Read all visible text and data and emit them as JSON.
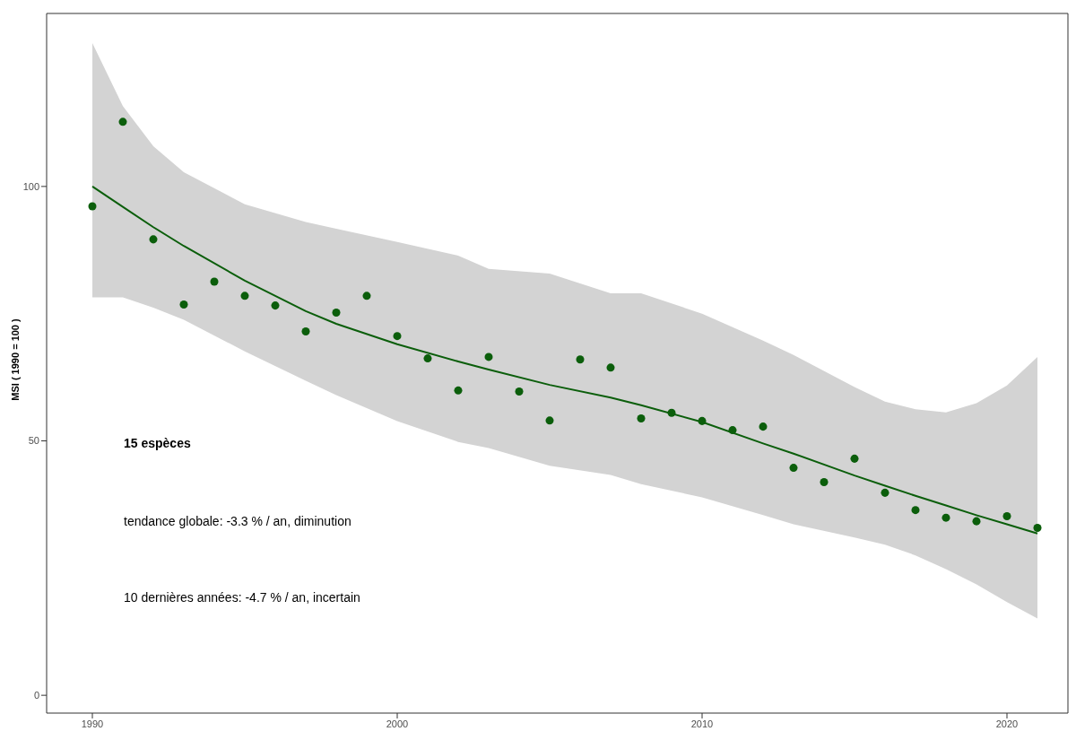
{
  "chart_data": {
    "type": "scatter",
    "ylabel": "MSI ( 1990 = 100 )",
    "x": [
      1990,
      1991,
      1992,
      1993,
      1994,
      1995,
      1996,
      1997,
      1998,
      1999,
      2000,
      2001,
      2002,
      2003,
      2004,
      2005,
      2006,
      2007,
      2008,
      2009,
      2010,
      2011,
      2012,
      2013,
      2014,
      2015,
      2016,
      2017,
      2018,
      2019,
      2020,
      2021
    ],
    "series": [
      {
        "color": "#0b5e0b",
        "values": [
          96.1,
          112.7,
          89.6,
          76.8,
          81.3,
          78.5,
          76.6,
          71.5,
          75.2,
          78.5,
          70.6,
          66.2,
          59.9,
          66.5,
          59.7,
          54.0,
          66.0,
          64.4,
          54.4,
          55.5,
          53.9,
          52.1,
          52.8,
          44.7,
          41.9,
          46.5,
          39.8,
          36.4,
          34.9,
          34.2,
          35.2,
          32.9
        ]
      },
      {
        "type": "line",
        "marker": "none",
        "color": "#0b5e0b",
        "x": [
          1990,
          1991,
          1992,
          1993,
          1995,
          1997,
          1998,
          2000,
          2002,
          2003,
          2005,
          2007,
          2008,
          2010,
          2012,
          2013,
          2015,
          2016,
          2017,
          2018,
          2019,
          2020,
          2021
        ],
        "values": [
          100,
          96,
          92,
          88.3,
          81.5,
          75.5,
          73,
          69,
          65.6,
          64,
          61,
          58.5,
          57,
          53.7,
          49.5,
          47.5,
          43.2,
          41.2,
          39.2,
          37.3,
          35.4,
          33.6,
          31.8
        ],
        "lower": [
          78.2,
          78.2,
          76.2,
          73.8,
          67.6,
          61.8,
          59,
          53.9,
          49.8,
          48.6,
          45.1,
          43.3,
          41.5,
          38.9,
          35.4,
          33.6,
          31,
          29.6,
          27.5,
          24.8,
          21.8,
          18.3,
          15.1
        ],
        "upper": [
          128.2,
          115.8,
          107.9,
          102.8,
          96.5,
          93,
          91.7,
          89.1,
          86.4,
          83.8,
          82.9,
          79,
          79,
          75,
          69.7,
          66.9,
          60.6,
          57.7,
          56.2,
          55.6,
          57.4,
          60.9,
          66.5
        ]
      }
    ],
    "xlim": [
      1988.5,
      2022
    ],
    "xticks": [
      1990,
      2000,
      2010,
      2020
    ],
    "ylim": [
      -3.5,
      134
    ],
    "yticks": [
      0,
      50,
      100
    ],
    "annotations": [
      "15 espèces",
      "tendance globale: -3.3 % / an, diminution",
      "10 dernières années: -4.7 % / an, incertain"
    ],
    "marker": "circle",
    "grid": false
  }
}
